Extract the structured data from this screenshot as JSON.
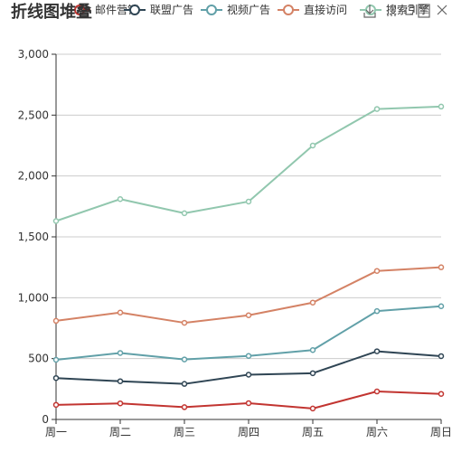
{
  "chart_data": {
    "type": "line",
    "title": "折线图堆叠",
    "categories": [
      "周一",
      "周二",
      "周三",
      "周四",
      "周五",
      "周六",
      "周日"
    ],
    "yticks": [
      "0",
      "500",
      "1,000",
      "1,500",
      "2,000",
      "2,500",
      "3,000"
    ],
    "ylim": [
      0,
      3000
    ],
    "stacked": true,
    "grid": true,
    "legend_position": "top",
    "series": [
      {
        "name": "邮件营销",
        "color": "#c23531",
        "values": [
          120,
          132,
          101,
          134,
          90,
          230,
          210
        ]
      },
      {
        "name": "联盟广告",
        "color": "#2f4554",
        "values": [
          340,
          314,
          292,
          368,
          380,
          560,
          520
        ]
      },
      {
        "name": "视频广告",
        "color": "#61a0a8",
        "values": [
          490,
          546,
          493,
          522,
          570,
          890,
          930
        ]
      },
      {
        "name": "直接访问",
        "color": "#d48265",
        "values": [
          810,
          878,
          794,
          856,
          960,
          1220,
          1250
        ]
      },
      {
        "name": "搜索引擎",
        "color": "#91c7ae",
        "values": [
          1630,
          1810,
          1694,
          1790,
          2250,
          2550,
          2570
        ]
      }
    ]
  },
  "toolbox": {
    "icons": [
      "download-icon",
      "data-view-icon",
      "restore-icon",
      "save-image-icon",
      "zoom-icon"
    ]
  }
}
